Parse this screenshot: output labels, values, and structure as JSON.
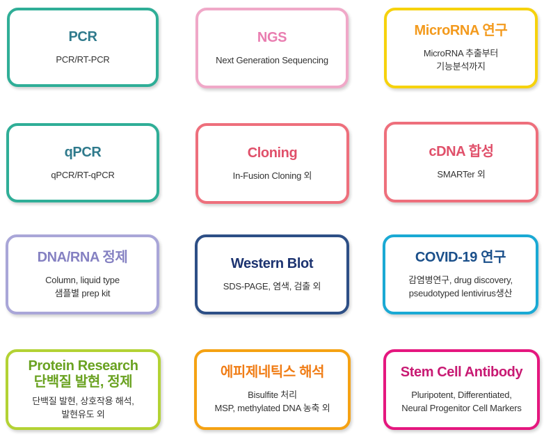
{
  "cards": [
    {
      "title": "PCR",
      "lines": [
        "PCR/RT-PCR"
      ],
      "border": "#2fae97",
      "color": "#2f7a8c"
    },
    {
      "title": "NGS",
      "lines": [
        "Next Generation Sequencing"
      ],
      "border": "#f0a8c8",
      "color": "#e97db0"
    },
    {
      "title": "MicroRNA 연구",
      "lines": [
        "MicroRNA 추출부터",
        "기능분석까지"
      ],
      "border": "#f6d20d",
      "color": "#f39a1d"
    },
    {
      "title": "qPCR",
      "lines": [
        "qPCR/RT-qPCR"
      ],
      "border": "#2fae97",
      "color": "#2f7a8c"
    },
    {
      "title": "Cloning",
      "lines": [
        "In-Fusion Cloning 외"
      ],
      "border": "#ee6f7c",
      "color": "#e0506a"
    },
    {
      "title": "cDNA 합성",
      "lines": [
        "SMARTer 외"
      ],
      "border": "#ee6f7c",
      "color": "#e0506a"
    },
    {
      "title": "DNA/RNA 정제",
      "lines": [
        "Column, liquid type",
        "샘플별 prep kit"
      ],
      "border": "#a9a6d8",
      "color": "#8581c2"
    },
    {
      "title": "Western Blot",
      "lines": [
        "SDS-PAGE, 염색, 검출 외"
      ],
      "border": "#2d4f86",
      "color": "#1c3370"
    },
    {
      "title": "COVID-19 연구",
      "lines": [
        "감염병연구, drug discovery,",
        "pseudotyped lentivirus생산"
      ],
      "border": "#1aa9d4",
      "color": "#1a4f8a"
    },
    {
      "title": "Protein Research\n단백질 발현, 정제",
      "lines": [
        "단백질 발현, 상호작용 해석,",
        "발현유도 외"
      ],
      "border": "#b3d234",
      "color": "#6aa221"
    },
    {
      "title": "에피제네틱스 해석",
      "lines": [
        "Bisulfite 처리",
        "MSP, methylated DNA 농축 외"
      ],
      "border": "#f5a213",
      "color": "#f07d16"
    },
    {
      "title": "Stem Cell Antibody",
      "lines": [
        "Pluripotent, Differentiated,",
        "Neural Progenitor Cell Markers"
      ],
      "border": "#e5177f",
      "color": "#c81a73"
    }
  ]
}
